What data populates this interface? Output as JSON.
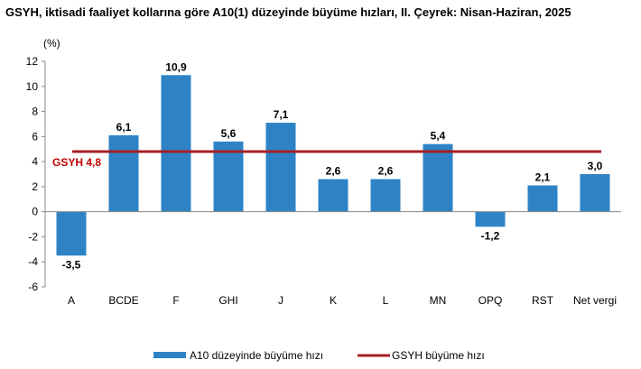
{
  "chart_data": {
    "type": "bar",
    "title": "GSYH, iktisadi faaliyet kollarına göre A10(1) düzeyinde büyüme hızları, II. Çeyrek: Nisan-Haziran, 2025",
    "ylabel": "(%)",
    "categories": [
      "A",
      "BCDE",
      "F",
      "GHI",
      "J",
      "K",
      "L",
      "MN",
      "OPQ",
      "RST",
      "Net vergi"
    ],
    "series": [
      {
        "name": "A10 düzeyinde büyüme hızı",
        "values": [
          -3.5,
          6.1,
          10.9,
          5.6,
          7.1,
          2.6,
          2.6,
          5.4,
          -1.2,
          2.1,
          3.0
        ]
      }
    ],
    "value_labels": [
      "-3,5",
      "6,1",
      "10,9",
      "5,6",
      "7,1",
      "2,6",
      "2,6",
      "5,4",
      "-1,2",
      "2,1",
      "3,0"
    ],
    "reference_line": {
      "name": "GSYH büyüme hızı",
      "value": 4.8,
      "label": "GSYH 4,8"
    },
    "ylim": [
      -6,
      12
    ],
    "yticks": [
      -6,
      -4,
      -2,
      0,
      2,
      4,
      6,
      8,
      10,
      12
    ],
    "grid": false,
    "legend_position": "bottom",
    "colors": {
      "bar": "#2e83c6",
      "reference": "#a81e24"
    }
  }
}
